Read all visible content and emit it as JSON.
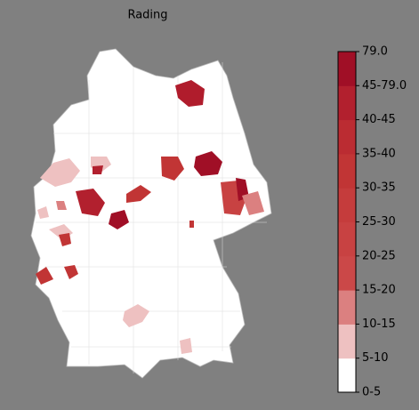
{
  "title": "Rading",
  "colorbar": {
    "labels": [
      "0-5",
      "5-10",
      "10-15",
      "15-20",
      "20-25",
      "25-30",
      "30-35",
      "35-40",
      "40-45",
      "45-79.0",
      "79.0"
    ],
    "colors": [
      "#ffffff",
      "#eec1c1",
      "#db8080",
      "#cb4848",
      "#c84242",
      "#c53c3c",
      "#c13535",
      "#bb2c32",
      "#b2202e",
      "#a00f26"
    ]
  }
}
